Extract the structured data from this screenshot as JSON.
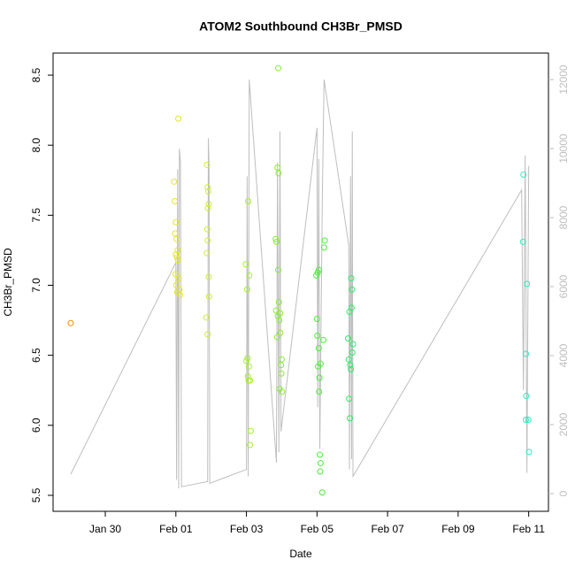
{
  "chart_data": {
    "type": "scatter",
    "title": "ATOM2 Southbound CH3Br_PMSD",
    "x_label": "Date",
    "y_label": "CH3Br_PMSD",
    "xlim": [
      -1.48,
      12.56
    ],
    "xticks": [
      {
        "value": 0,
        "label": "Jan 30"
      },
      {
        "value": 2,
        "label": "Feb 01"
      },
      {
        "value": 4,
        "label": "Feb 03"
      },
      {
        "value": 6,
        "label": "Feb 05"
      },
      {
        "value": 8,
        "label": "Feb 07"
      },
      {
        "value": 10,
        "label": "Feb 09"
      },
      {
        "value": 12,
        "label": "Feb 11"
      }
    ],
    "ylim": [
      5.386,
      8.658
    ],
    "yticks": [
      5.5,
      {
        "value": 6,
        "label": "6.0"
      },
      6.5,
      {
        "value": 7,
        "label": "7.0"
      },
      7.5,
      {
        "value": 8,
        "label": "8.0"
      },
      8.5
    ],
    "y2lim": [
      -513,
      12769
    ],
    "y2ticks": [
      0,
      2000,
      4000,
      6000,
      8000,
      10000,
      12000
    ],
    "y2color": "#bebebe",
    "series": [
      {
        "color": "#ff8c00",
        "x": [
          -0.98
        ],
        "values": [
          6.73
        ]
      },
      {
        "color": "#e3e62a",
        "x": [
          1.95,
          1.97,
          2.0,
          1.98,
          2.02,
          2.05,
          2.0,
          2.03,
          2.06,
          1.99,
          2.08,
          2.01,
          2.1,
          2.04,
          2.12,
          2.07
        ],
        "values": [
          7.74,
          7.6,
          7.45,
          7.37,
          7.33,
          7.25,
          7.22,
          7.2,
          7.18,
          7.08,
          7.05,
          7.0,
          6.97,
          6.95,
          6.93,
          8.19
        ]
      },
      {
        "color": "#cdee3a",
        "x": [
          2.88,
          2.9,
          2.92,
          2.93,
          2.91,
          2.89,
          2.9,
          2.88,
          2.93,
          2.94,
          2.86,
          2.9
        ],
        "values": [
          7.86,
          7.7,
          7.67,
          7.58,
          7.55,
          7.4,
          7.32,
          7.23,
          7.06,
          6.92,
          6.77,
          6.65
        ]
      },
      {
        "color": "#a5ee35",
        "x": [
          4.05,
          3.98,
          4.08,
          4.02,
          4.03,
          4.0,
          4.07,
          4.04,
          4.06,
          4.1,
          4.12,
          4.1
        ],
        "values": [
          7.6,
          7.15,
          7.07,
          6.97,
          6.48,
          6.46,
          6.42,
          6.35,
          6.32,
          6.32,
          5.96,
          5.86
        ]
      },
      {
        "color": "#8aee30",
        "x": [
          4.9,
          4.88,
          4.91,
          4.83,
          4.85,
          4.9,
          4.92,
          4.84,
          4.95,
          4.89,
          4.93,
          4.96,
          4.87,
          5.0,
          4.98,
          4.99,
          4.94,
          5.01
        ],
        "values": [
          8.55,
          7.84,
          7.8,
          7.33,
          7.31,
          7.11,
          6.88,
          6.82,
          6.8,
          6.78,
          6.75,
          6.66,
          6.63,
          6.47,
          6.43,
          6.37,
          6.26,
          6.24
        ]
      },
      {
        "color": "#4bee3a",
        "x": [
          6.05,
          6.02,
          5.98,
          6.22,
          6.2,
          6.0,
          6.01,
          6.18,
          6.05,
          6.1,
          6.03,
          6.07,
          6.06,
          6.08,
          6.1,
          6.09,
          6.15
        ],
        "values": [
          7.11,
          7.09,
          7.07,
          7.32,
          7.27,
          6.76,
          6.64,
          6.61,
          6.55,
          6.44,
          6.42,
          6.34,
          6.24,
          5.79,
          5.73,
          5.67,
          5.52
        ]
      },
      {
        "color": "#2cee6a",
        "x": [
          6.97,
          6.99,
          6.98,
          6.92,
          6.88,
          7.02,
          7.0,
          6.9,
          6.94,
          6.96,
          6.91,
          6.93
        ],
        "values": [
          7.05,
          6.97,
          6.84,
          6.81,
          6.62,
          6.58,
          6.52,
          6.47,
          6.43,
          6.4,
          6.19,
          6.05
        ]
      },
      {
        "color": "#2aeec0",
        "x": [
          11.85,
          11.84,
          11.95,
          11.92,
          11.93,
          11.92,
          11.99,
          12.01
        ],
        "values": [
          7.79,
          7.31,
          7.01,
          6.51,
          6.21,
          6.04,
          6.04,
          5.81
        ]
      },
      {
        "type": "line",
        "axis": "y2",
        "color": "#bebebe",
        "x": [
          -0.98,
          2.0,
          2.02,
          2.05,
          2.08,
          2.1,
          2.13,
          2.16,
          2.9,
          2.92,
          2.94,
          2.96,
          4.0,
          4.02,
          4.05,
          4.08,
          4.85,
          4.88,
          4.92,
          4.95,
          4.98,
          6.0,
          6.02,
          6.05,
          6.08,
          6.15,
          6.2,
          6.9,
          6.92,
          6.95,
          6.98,
          7.0,
          7.02,
          11.8,
          11.85,
          11.9,
          11.95,
          12.0
        ],
        "values": [
          560,
          6700,
          400,
          9400,
          150,
          10000,
          9600,
          200,
          350,
          10300,
          9500,
          300,
          700,
          9200,
          500,
          12000,
          900,
          9600,
          1200,
          10500,
          1800,
          10600,
          2500,
          9700,
          1300,
          8500,
          12000,
          7200,
          700,
          9200,
          1000,
          10500,
          500,
          8800,
          3000,
          9800,
          600,
          9500
        ]
      }
    ]
  }
}
